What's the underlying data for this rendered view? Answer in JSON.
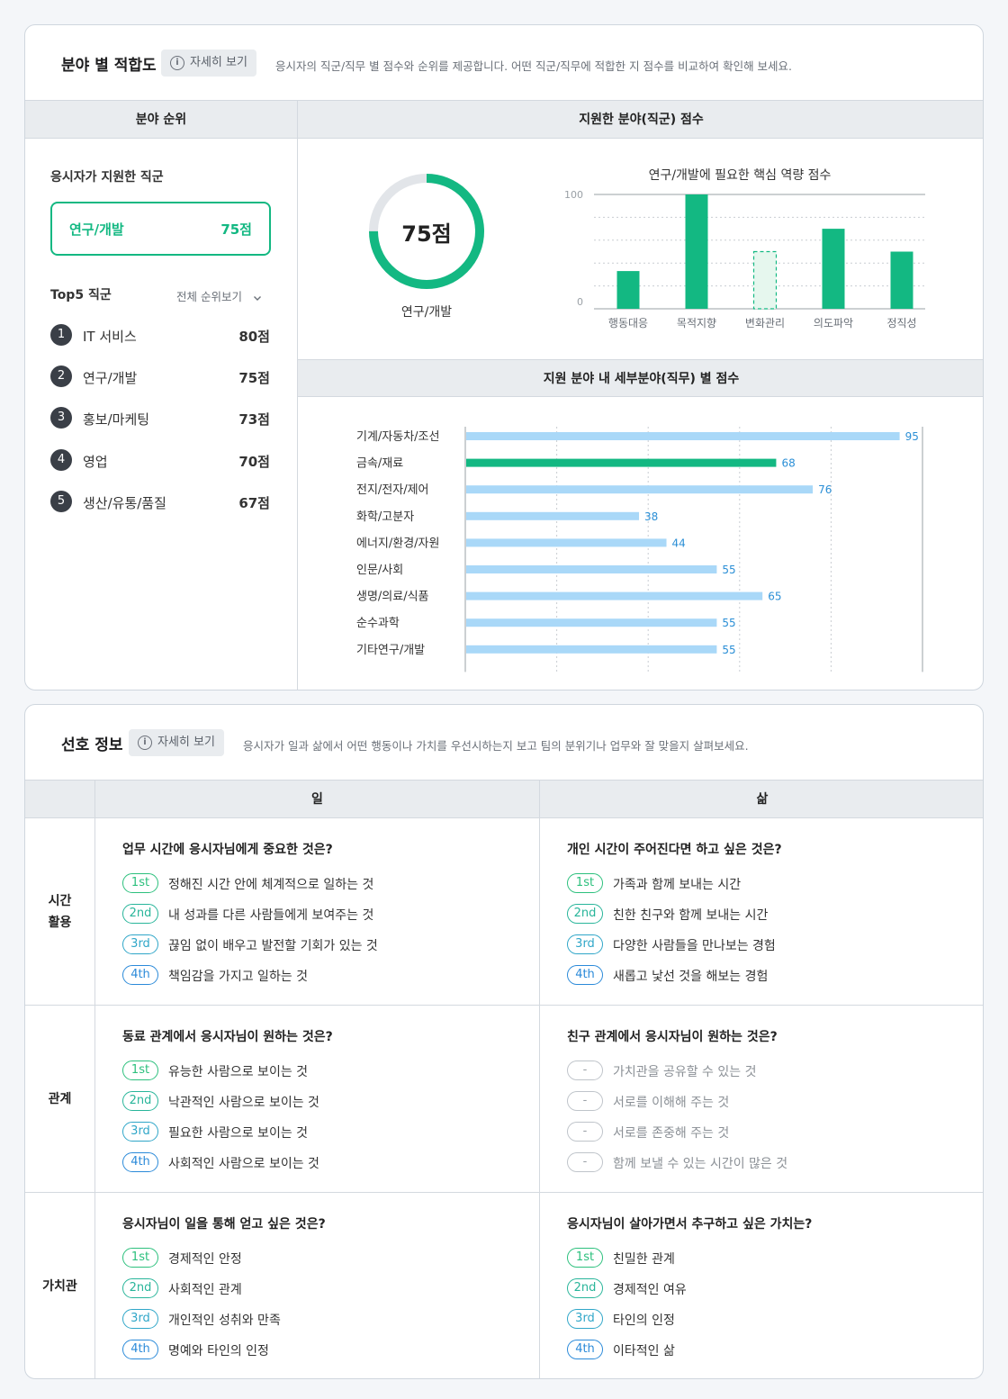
{
  "fit": {
    "title": "분야 별 적합도",
    "detail_label": "자세히 보기",
    "description": "응시자의 직군/직무 별 점수와 순위를 제공합니다. 어떤 직군/직무에 적합한 지 점수를 비교하여 확인해 보세요.",
    "rank_header": "분야 순위",
    "score_header": "지원한 분야(직군) 점수",
    "detail_header": "지원 분야 내 세부분야(직무) 별 점수",
    "applied_label": "응시자가 지원한 직군",
    "applied_name": "연구/개발",
    "applied_score": "75점",
    "top5_label": "Top5 직군",
    "all_rank_label": "전체 순위보기",
    "top5": [
      {
        "num": "1",
        "name": "IT 서비스",
        "score": "80점"
      },
      {
        "num": "2",
        "name": "연구/개발",
        "score": "75점"
      },
      {
        "num": "3",
        "name": "홍보/마케팅",
        "score": "73점"
      },
      {
        "num": "4",
        "name": "영업",
        "score": "70점"
      },
      {
        "num": "5",
        "name": "생산/유통/품질",
        "score": "67점"
      }
    ],
    "donut": {
      "value": 75,
      "score_text": "75점",
      "label": "연구/개발"
    },
    "competency_title": "연구/개발에 필요한 핵심 역량 점수"
  },
  "chart_data": [
    {
      "type": "bar",
      "title": "연구/개발에 필요한 핵심 역량 점수",
      "categories": [
        "행동대응",
        "목적지향",
        "변화관리",
        "의도파악",
        "정직성"
      ],
      "values": [
        33,
        100,
        50,
        70,
        50
      ],
      "highlight_dashed": "변화관리",
      "ylim": [
        0,
        100
      ],
      "yticks": [
        "0",
        "100"
      ],
      "grid": true,
      "color": "#13b882"
    },
    {
      "type": "bar",
      "orientation": "horizontal",
      "title": "지원 분야 내 세부분야(직무) 별 점수",
      "categories": [
        "기계/자동차/조선",
        "금속/재료",
        "전지/전자/제어",
        "화학/고분자",
        "에너지/환경/자원",
        "인문/사회",
        "생명/의료/식품",
        "순수과학",
        "기타연구/개발"
      ],
      "values": [
        95,
        68,
        76,
        38,
        44,
        55,
        65,
        55,
        55
      ],
      "highlight": "금속/재료",
      "xlim": [
        0,
        100
      ],
      "xticks": [
        "0",
        "100"
      ],
      "grid": true,
      "colors": {
        "default": "#a9d8f8",
        "highlight": "#13b882",
        "label": "#2b8fd6"
      }
    }
  ],
  "pref": {
    "title": "선호 정보",
    "detail_label": "자세히 보기",
    "description": "응시자가 일과 삶에서 어떤 행동이나 가치를 우선시하는지 보고 팀의 분위기나 업무와 잘 맞을지 살펴보세요.",
    "col_work": "일",
    "col_life": "삶",
    "rows": [
      {
        "label_line1": "시간",
        "label_line2": "활용",
        "work": {
          "question": "업무 시간에 응시자님에게 중요한 것은?",
          "answers": [
            {
              "rank": "1st",
              "text": "정해진 시간 안에 체계적으로 일하는 것"
            },
            {
              "rank": "2nd",
              "text": "내 성과를 다른 사람들에게 보여주는 것"
            },
            {
              "rank": "3rd",
              "text": "끊임 없이 배우고 발전할 기회가 있는 것"
            },
            {
              "rank": "4th",
              "text": "책임감을 가지고 일하는 것"
            }
          ]
        },
        "life": {
          "question": "개인 시간이 주어진다면 하고 싶은 것은?",
          "answers": [
            {
              "rank": "1st",
              "text": "가족과 함께 보내는 시간"
            },
            {
              "rank": "2nd",
              "text": "친한 친구와 함께 보내는 시간"
            },
            {
              "rank": "3rd",
              "text": "다양한 사람들을 만나보는 경험"
            },
            {
              "rank": "4th",
              "text": "새롭고 낯선 것을 해보는 경험"
            }
          ]
        }
      },
      {
        "label_line1": "관계",
        "label_line2": "",
        "work": {
          "question": "동료 관계에서 응시자님이 원하는 것은?",
          "answers": [
            {
              "rank": "1st",
              "text": "유능한 사람으로 보이는 것"
            },
            {
              "rank": "2nd",
              "text": "낙관적인 사람으로 보이는 것"
            },
            {
              "rank": "3rd",
              "text": "필요한 사람으로 보이는 것"
            },
            {
              "rank": "4th",
              "text": "사회적인 사람으로 보이는 것"
            }
          ]
        },
        "life": {
          "question": "친구 관계에서 응시자님이 원하는 것은?",
          "answers": [
            {
              "rank": "-",
              "text": "가치관을 공유할 수 있는 것"
            },
            {
              "rank": "-",
              "text": "서로를 이해해 주는 것"
            },
            {
              "rank": "-",
              "text": "서로를 존중해 주는 것"
            },
            {
              "rank": "-",
              "text": "함께 보낼 수 있는 시간이 많은 것"
            }
          ]
        }
      },
      {
        "label_line1": "가치관",
        "label_line2": "",
        "work": {
          "question": "응시자님이 일을 통해  얻고 싶은 것은?",
          "answers": [
            {
              "rank": "1st",
              "text": "경제적인 안정"
            },
            {
              "rank": "2nd",
              "text": "사회적인 관계"
            },
            {
              "rank": "3rd",
              "text": "개인적인 성취와 만족"
            },
            {
              "rank": "4th",
              "text": "명예와 타인의 인정"
            }
          ]
        },
        "life": {
          "question": "응시자님이 살아가면서 추구하고 싶은 가치는?",
          "answers": [
            {
              "rank": "1st",
              "text": "친밀한 관계"
            },
            {
              "rank": "2nd",
              "text": "경제적인 여유"
            },
            {
              "rank": "3rd",
              "text": "타인의 인정"
            },
            {
              "rank": "4th",
              "text": "이타적인 삶"
            }
          ]
        }
      }
    ]
  }
}
